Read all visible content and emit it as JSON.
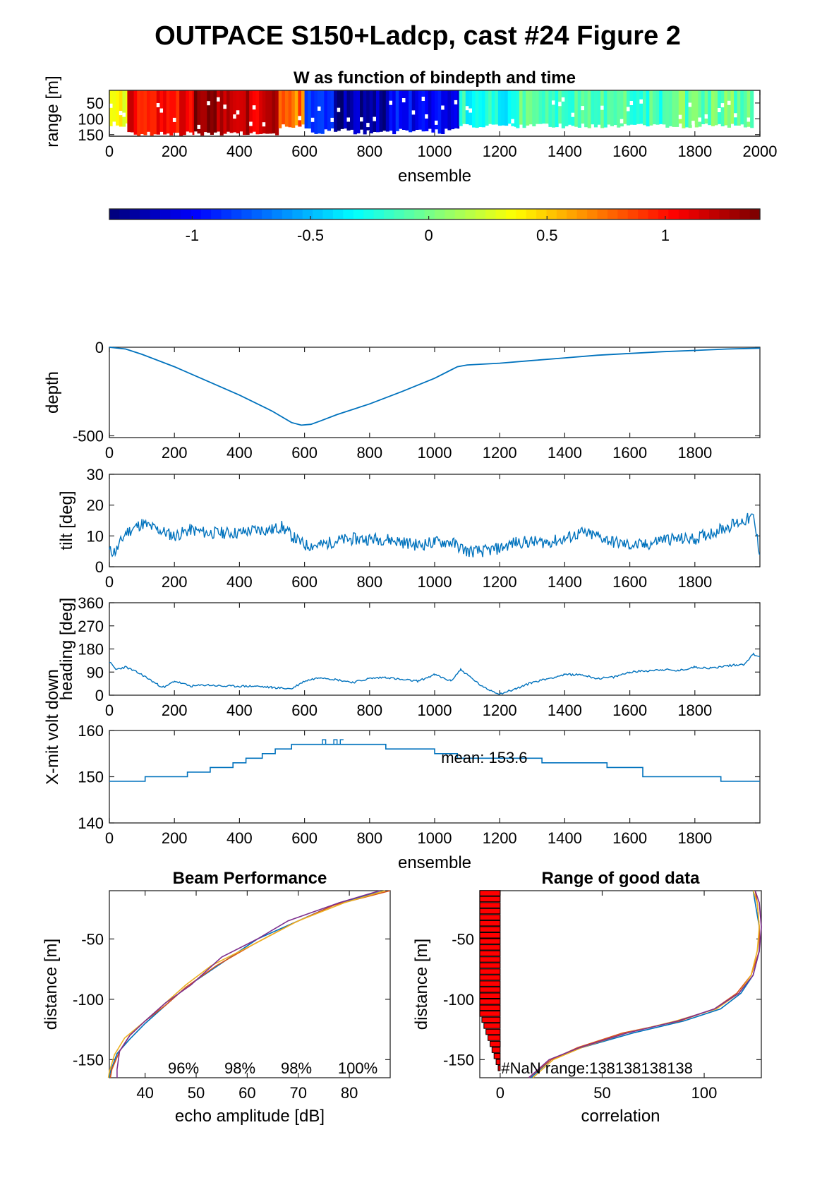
{
  "figure": {
    "title": "OUTPACE S150+Ladcp, cast #24 Figure 2"
  },
  "chart_data": [
    {
      "id": "w_image",
      "type": "heatmap",
      "title": "W as function of bindepth and time",
      "xlabel": "ensemble",
      "ylabel": "range [m]",
      "xlim": [
        0,
        2000
      ],
      "ylim": [
        10,
        155
      ],
      "y_reversed": true,
      "xticks": [
        0,
        200,
        400,
        600,
        800,
        1000,
        1200,
        1400,
        1600,
        1800,
        2000
      ],
      "yticks": [
        50,
        100,
        150
      ],
      "segments": [
        {
          "x0": 0,
          "x1": 55,
          "w": 0.35
        },
        {
          "x0": 55,
          "x1": 260,
          "w": 1.05
        },
        {
          "x0": 260,
          "x1": 400,
          "w": 1.3
        },
        {
          "x0": 400,
          "x1": 520,
          "w": 1.2
        },
        {
          "x0": 520,
          "x1": 600,
          "w": 0.75
        },
        {
          "x0": 600,
          "x1": 690,
          "w": -0.8
        },
        {
          "x0": 690,
          "x1": 860,
          "w": -1.25
        },
        {
          "x0": 860,
          "x1": 1000,
          "w": -1.0
        },
        {
          "x0": 1000,
          "x1": 1075,
          "w": -1.1
        },
        {
          "x0": 1075,
          "x1": 1250,
          "w": -0.25
        },
        {
          "x0": 1250,
          "x1": 1500,
          "w": -0.1
        },
        {
          "x0": 1500,
          "x1": 1750,
          "w": -0.15
        },
        {
          "x0": 1750,
          "x1": 1980,
          "w": -0.05
        }
      ]
    },
    {
      "id": "colorbar",
      "type": "colorbar",
      "clim": [
        -1.35,
        1.4
      ],
      "ticks": [
        -1,
        -0.5,
        0,
        0.5,
        1
      ],
      "tick_labels": [
        "-1",
        "-0.5",
        "0",
        "0.5",
        "1"
      ]
    },
    {
      "id": "depth",
      "type": "line",
      "ylabel": "depth",
      "xlim": [
        0,
        2000
      ],
      "ylim": [
        -510,
        0
      ],
      "xticks": [
        0,
        200,
        400,
        600,
        800,
        1000,
        1200,
        1400,
        1600,
        1800
      ],
      "yticks": [
        -500,
        0
      ],
      "x": [
        0,
        50,
        100,
        200,
        300,
        400,
        500,
        560,
        590,
        620,
        650,
        700,
        800,
        900,
        1000,
        1070,
        1100,
        1200,
        1300,
        1400,
        1500,
        1600,
        1700,
        1800,
        1900,
        2000
      ],
      "y": [
        0,
        -10,
        -40,
        -110,
        -190,
        -270,
        -360,
        -425,
        -440,
        -435,
        -415,
        -380,
        -320,
        -250,
        -175,
        -110,
        -100,
        -90,
        -75,
        -60,
        -45,
        -35,
        -25,
        -18,
        -10,
        -5
      ]
    },
    {
      "id": "tilt",
      "type": "line",
      "ylabel": "tilt [deg]",
      "xlim": [
        0,
        2000
      ],
      "ylim": [
        0,
        30
      ],
      "xticks": [
        0,
        200,
        400,
        600,
        800,
        1000,
        1200,
        1400,
        1600,
        1800
      ],
      "yticks": [
        0,
        10,
        20,
        30
      ],
      "x": [
        0,
        20,
        50,
        100,
        150,
        200,
        250,
        300,
        350,
        400,
        450,
        500,
        530,
        560,
        600,
        650,
        700,
        750,
        800,
        850,
        900,
        950,
        1000,
        1050,
        1100,
        1150,
        1200,
        1250,
        1300,
        1350,
        1400,
        1450,
        1500,
        1550,
        1600,
        1650,
        1700,
        1750,
        1800,
        1850,
        1900,
        1950,
        1980,
        2000
      ],
      "y": [
        5,
        5,
        11,
        14,
        12,
        10,
        12,
        11,
        11,
        11,
        12,
        12,
        13,
        10,
        7,
        7,
        8.5,
        9,
        9,
        9,
        8,
        7,
        8,
        8,
        5,
        5,
        6,
        8,
        8,
        8,
        9,
        11,
        10,
        8,
        7,
        7,
        9,
        9,
        9,
        11,
        13,
        15,
        16,
        4
      ]
    },
    {
      "id": "heading",
      "type": "line",
      "ylabel": "heading [deg]",
      "xlim": [
        0,
        2000
      ],
      "ylim": [
        0,
        360
      ],
      "xticks": [
        0,
        200,
        400,
        600,
        800,
        1000,
        1200,
        1400,
        1600,
        1800
      ],
      "yticks": [
        0,
        90,
        180,
        270,
        360
      ],
      "x": [
        0,
        20,
        50,
        100,
        150,
        170,
        200,
        250,
        300,
        350,
        400,
        450,
        500,
        560,
        600,
        650,
        700,
        750,
        800,
        850,
        900,
        950,
        1000,
        1050,
        1080,
        1100,
        1150,
        1200,
        1250,
        1300,
        1350,
        1400,
        1450,
        1500,
        1550,
        1600,
        1650,
        1700,
        1750,
        1800,
        1850,
        1900,
        1950,
        1980,
        2000
      ],
      "y": [
        130,
        100,
        110,
        80,
        40,
        30,
        55,
        35,
        40,
        35,
        35,
        35,
        30,
        25,
        55,
        70,
        60,
        50,
        65,
        70,
        60,
        55,
        80,
        55,
        100,
        80,
        30,
        5,
        25,
        50,
        65,
        80,
        80,
        65,
        70,
        90,
        95,
        100,
        95,
        110,
        105,
        115,
        120,
        160,
        150
      ]
    },
    {
      "id": "voltage",
      "type": "line",
      "ylabel": "X-mit volt down",
      "xlabel": "ensemble",
      "xlim": [
        0,
        2000
      ],
      "ylim": [
        140,
        160
      ],
      "xticks": [
        0,
        200,
        400,
        600,
        800,
        1000,
        1200,
        1400,
        1600,
        1800
      ],
      "yticks": [
        140,
        150,
        160
      ],
      "annotation": "mean: 153.6",
      "x": [
        0,
        110,
        110,
        240,
        240,
        310,
        310,
        380,
        380,
        420,
        420,
        470,
        470,
        510,
        510,
        560,
        560,
        640,
        640,
        850,
        850,
        1000,
        1000,
        1070,
        1070,
        1330,
        1330,
        1530,
        1530,
        1640,
        1640,
        1880,
        1880,
        2000
      ],
      "y": [
        149,
        149,
        150,
        150,
        151,
        151,
        152,
        152,
        153,
        153,
        154,
        154,
        155,
        155,
        156,
        156,
        157,
        157,
        157,
        157,
        156,
        156,
        155,
        155,
        154,
        154,
        153,
        153,
        152,
        152,
        150,
        150,
        149,
        149
      ]
    },
    {
      "id": "beam_performance",
      "type": "line",
      "title": "Beam Performance",
      "xlabel": "echo amplitude [dB]",
      "ylabel": "distance [m]",
      "xlim": [
        33,
        88
      ],
      "ylim": [
        -165,
        -10
      ],
      "xticks": [
        40,
        50,
        60,
        70,
        80
      ],
      "yticks": [
        -150,
        -100,
        -50
      ],
      "annotations": [
        "96%",
        "98%",
        "98%",
        "100%"
      ],
      "series": [
        {
          "color": "#0072bd",
          "x": [
            87,
            78,
            70,
            62,
            55,
            48,
            44,
            40,
            37,
            34.5,
            33.2,
            33
          ],
          "y": [
            -10,
            -20,
            -35,
            -50,
            -70,
            -90,
            -105,
            -120,
            -133,
            -145,
            -160,
            -165
          ]
        },
        {
          "color": "#d95319",
          "x": [
            88,
            77,
            69,
            61,
            54,
            48,
            44,
            40,
            37,
            35,
            33.5,
            33.2
          ],
          "y": [
            -10,
            -22,
            -37,
            -55,
            -72,
            -90,
            -105,
            -118,
            -130,
            -143,
            -158,
            -165
          ]
        },
        {
          "color": "#edb120",
          "x": [
            87,
            79,
            70,
            61,
            53,
            48,
            44,
            40,
            36,
            34,
            33,
            32.8
          ],
          "y": [
            -10,
            -20,
            -35,
            -55,
            -72,
            -88,
            -103,
            -118,
            -132,
            -146,
            -160,
            -165
          ]
        },
        {
          "color": "#7e2f8e",
          "x": [
            86,
            78,
            68,
            62,
            55,
            49,
            44,
            40,
            37,
            35,
            34.5,
            34.5
          ],
          "y": [
            -10,
            -20,
            -35,
            -50,
            -65,
            -88,
            -103,
            -118,
            -130,
            -143,
            -158,
            -165
          ]
        }
      ]
    },
    {
      "id": "good_data",
      "type": "line",
      "title": "Range of good data",
      "xlabel": "correlation",
      "ylabel": "distance [m]",
      "xlim": [
        -10,
        128
      ],
      "ylim": [
        -165,
        -10
      ],
      "xticks": [
        0,
        50,
        100
      ],
      "yticks": [
        -150,
        -100,
        -50
      ],
      "annotation": "#NaN range:138138138138",
      "bins": {
        "y": [
          -12,
          -17,
          -22,
          -27,
          -32,
          -37,
          -42,
          -47,
          -52,
          -57,
          -62,
          -67,
          -72,
          -77,
          -82,
          -87,
          -92,
          -97,
          -102,
          -107,
          -112,
          -117,
          -122,
          -127,
          -132,
          -137,
          -142,
          -147,
          -152,
          -157
        ],
        "counts": [
          -10,
          -10,
          -10,
          -10,
          -10,
          -10,
          -10,
          -10,
          -10,
          -10,
          -10,
          -10,
          -10,
          -10,
          -10,
          -10,
          -10,
          -10,
          -10,
          -10,
          -10,
          -9,
          -8,
          -7,
          -6,
          -5,
          -4,
          -3,
          -2,
          -1
        ]
      },
      "series": [
        {
          "color": "#0072bd",
          "x": [
            124,
            125,
            127,
            127,
            124,
            118,
            108,
            90,
            65,
            40,
            25,
            15
          ],
          "y": [
            -10,
            -20,
            -40,
            -60,
            -80,
            -95,
            -108,
            -118,
            -128,
            -140,
            -150,
            -165
          ]
        },
        {
          "color": "#d95319",
          "x": [
            125,
            126,
            127,
            127,
            123,
            116,
            105,
            88,
            60,
            38,
            25,
            14
          ],
          "y": [
            -10,
            -20,
            -40,
            -60,
            -80,
            -95,
            -108,
            -118,
            -128,
            -140,
            -150,
            -165
          ]
        },
        {
          "color": "#edb120",
          "x": [
            124,
            126,
            127,
            126,
            123,
            117,
            106,
            86,
            62,
            40,
            26,
            16
          ],
          "y": [
            -10,
            -20,
            -40,
            -60,
            -80,
            -95,
            -108,
            -118,
            -128,
            -140,
            -150,
            -165
          ]
        },
        {
          "color": "#7e2f8e",
          "x": [
            125,
            127,
            128,
            127,
            124,
            117,
            105,
            87,
            62,
            39,
            24,
            14
          ],
          "y": [
            -10,
            -20,
            -40,
            -60,
            -80,
            -95,
            -108,
            -118,
            -128,
            -140,
            -150,
            -165
          ]
        }
      ]
    }
  ]
}
